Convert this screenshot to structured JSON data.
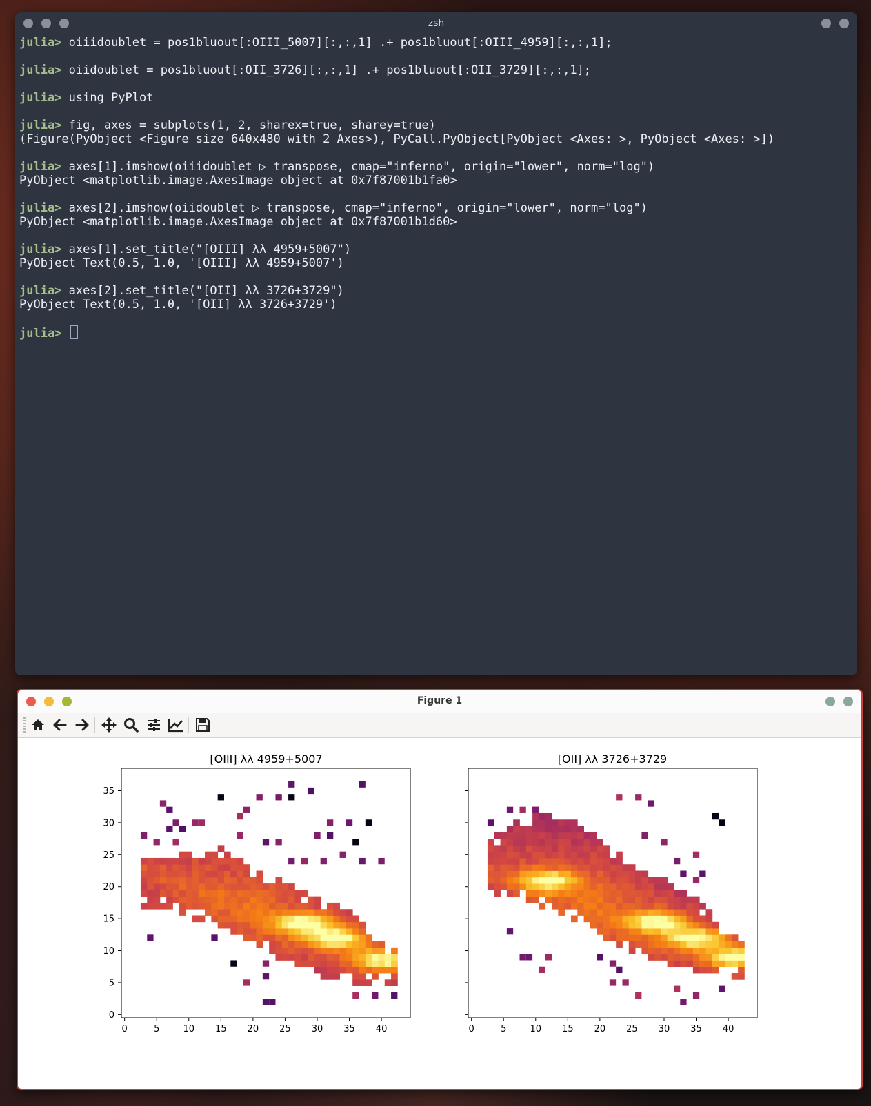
{
  "terminal": {
    "title": "zsh",
    "prompt": "julia>",
    "blocks": [
      {
        "cmd": " oiiidoublet = pos1bluout[:OIII_5007][:,:,1] .+ pos1bluout[:OIII_4959][:,:,1];",
        "out": []
      },
      {
        "cmd": " oiidoublet = pos1bluout[:OII_3726][:,:,1] .+ pos1bluout[:OII_3729][:,:,1];",
        "out": []
      },
      {
        "cmd": " using PyPlot",
        "out": []
      },
      {
        "cmd": " fig, axes = subplots(1, 2, sharex=true, sharey=true)",
        "out": [
          "(Figure(PyObject <Figure size 640x480 with 2 Axes>), PyCall.PyObject[PyObject <Axes: >, PyObject <Axes: >])"
        ]
      },
      {
        "cmd": " axes[1].imshow(oiiidoublet ▷ transpose, cmap=\"inferno\", origin=\"lower\", norm=\"log\")",
        "out": [
          "PyObject <matplotlib.image.AxesImage object at 0x7f87001b1fa0>"
        ]
      },
      {
        "cmd": " axes[2].imshow(oiidoublet ▷ transpose, cmap=\"inferno\", origin=\"lower\", norm=\"log\")",
        "out": [
          "PyObject <matplotlib.image.AxesImage object at 0x7f87001b1d60>"
        ]
      },
      {
        "cmd": " axes[1].set_title(\"[OIII] λλ 4959+5007\")",
        "out": [
          "PyObject Text(0.5, 1.0, '[OIII] λλ 4959+5007')"
        ]
      },
      {
        "cmd": " axes[2].set_title(\"[OII] λλ 3726+3729\")",
        "out": [
          "PyObject Text(0.5, 1.0, '[OII] λλ 3726+3729')"
        ]
      }
    ],
    "final_prompt": "julia>"
  },
  "figure": {
    "title": "Figure 1",
    "toolbar": [
      "home-icon",
      "back-arrow-icon",
      "forward-arrow-icon",
      "pan-icon",
      "zoom-icon",
      "configure-subplots-icon",
      "edit-axes-icon",
      "save-icon"
    ]
  },
  "chart_data": [
    {
      "type": "heatmap",
      "title": "[OIII] λλ 4959+5007",
      "colormap": "inferno",
      "norm": "log",
      "origin": "lower",
      "xlim": [
        -0.5,
        44.5
      ],
      "ylim": [
        -0.5,
        38.5
      ],
      "xticks": [
        0,
        5,
        10,
        15,
        20,
        25,
        30,
        35,
        40
      ],
      "yticks": [
        0,
        5,
        10,
        15,
        20,
        25,
        30,
        35
      ],
      "emission": {
        "band_start": [
          3,
          22.5
        ],
        "band_end": [
          42,
          8.5
        ],
        "band_halfwidth": 3.2,
        "peaks": [
          [
            28,
            14.3
          ],
          [
            33,
            12
          ],
          [
            40,
            8.5
          ]
        ],
        "lower_edge": [
          [
            5,
            17.5
          ],
          [
            15,
            14
          ],
          [
            25,
            9
          ],
          [
            30,
            6
          ],
          [
            42,
            5
          ]
        ],
        "upper_edge": [
          [
            3,
            25
          ],
          [
            15,
            25.5
          ],
          [
            25,
            20
          ],
          [
            35,
            16
          ],
          [
            41,
            10
          ]
        ]
      },
      "scattered_pixels": [
        [
          6,
          33
        ],
        [
          7,
          32
        ],
        [
          15,
          34
        ],
        [
          26,
          36
        ],
        [
          29,
          35
        ],
        [
          37,
          36
        ],
        [
          19,
          32
        ],
        [
          21,
          34
        ],
        [
          24,
          34
        ],
        [
          26,
          34
        ],
        [
          8,
          30
        ],
        [
          7,
          29
        ],
        [
          9,
          29
        ],
        [
          11,
          30
        ],
        [
          12,
          30
        ],
        [
          18,
          31
        ],
        [
          32,
          30
        ],
        [
          35,
          30
        ],
        [
          38,
          30
        ],
        [
          3,
          28
        ],
        [
          5,
          27
        ],
        [
          8,
          27
        ],
        [
          22,
          27
        ],
        [
          24,
          27
        ],
        [
          30,
          28
        ],
        [
          32,
          28
        ],
        [
          36,
          27
        ],
        [
          18,
          28
        ],
        [
          34,
          25
        ],
        [
          37,
          24
        ],
        [
          40,
          24
        ],
        [
          26,
          24
        ],
        [
          28,
          24
        ],
        [
          31,
          24
        ],
        [
          4,
          12
        ],
        [
          14,
          12
        ],
        [
          17,
          8
        ],
        [
          22,
          8
        ],
        [
          22,
          6
        ],
        [
          19,
          5
        ],
        [
          23,
          2
        ],
        [
          22,
          2
        ],
        [
          36,
          3
        ],
        [
          39,
          3
        ],
        [
          42,
          3
        ]
      ],
      "dark_pixels": [
        [
          15,
          34
        ],
        [
          26,
          34
        ],
        [
          38,
          30
        ],
        [
          36,
          27
        ],
        [
          17,
          8
        ]
      ]
    },
    {
      "type": "heatmap",
      "title": "[OII] λλ 3726+3729",
      "colormap": "inferno",
      "norm": "log",
      "origin": "lower",
      "xlim": [
        -0.5,
        44.5
      ],
      "ylim": [
        -0.5,
        38.5
      ],
      "xticks": [
        0,
        5,
        10,
        15,
        20,
        25,
        30,
        35,
        40
      ],
      "yticks": [],
      "emission": {
        "band_start": [
          3,
          22.5
        ],
        "band_end": [
          42,
          8.5
        ],
        "band_halfwidth": 3.5,
        "peaks": [
          [
            12,
            21
          ],
          [
            29,
            14.5
          ],
          [
            35,
            12
          ],
          [
            41,
            9
          ]
        ],
        "lower_edge": [
          [
            3,
            19.5
          ],
          [
            15,
            16
          ],
          [
            25,
            10
          ],
          [
            32,
            8
          ],
          [
            42,
            6
          ]
        ],
        "upper_edge": [
          [
            3,
            27
          ],
          [
            10,
            31.5
          ],
          [
            16,
            30
          ],
          [
            25,
            23
          ],
          [
            35,
            18
          ],
          [
            40,
            12
          ]
        ]
      },
      "scattered_pixels": [
        [
          23,
          34
        ],
        [
          26,
          34
        ],
        [
          28,
          33
        ],
        [
          6,
          32
        ],
        [
          8,
          32
        ],
        [
          10,
          32
        ],
        [
          38,
          31
        ],
        [
          39,
          30
        ],
        [
          3,
          30
        ],
        [
          27,
          28
        ],
        [
          30,
          27
        ],
        [
          35,
          25
        ],
        [
          32,
          24
        ],
        [
          33,
          22
        ],
        [
          36,
          22
        ],
        [
          35,
          21
        ],
        [
          6,
          13
        ],
        [
          8,
          9
        ],
        [
          9,
          9
        ],
        [
          12,
          9
        ],
        [
          11,
          7
        ],
        [
          20,
          9
        ],
        [
          22,
          8
        ],
        [
          23,
          7
        ],
        [
          22,
          5
        ],
        [
          24,
          5
        ],
        [
          26,
          3
        ],
        [
          32,
          4
        ],
        [
          33,
          2
        ],
        [
          35,
          3
        ],
        [
          39,
          4
        ]
      ],
      "dark_pixels": [
        [
          38,
          31
        ],
        [
          39,
          30
        ]
      ]
    }
  ]
}
